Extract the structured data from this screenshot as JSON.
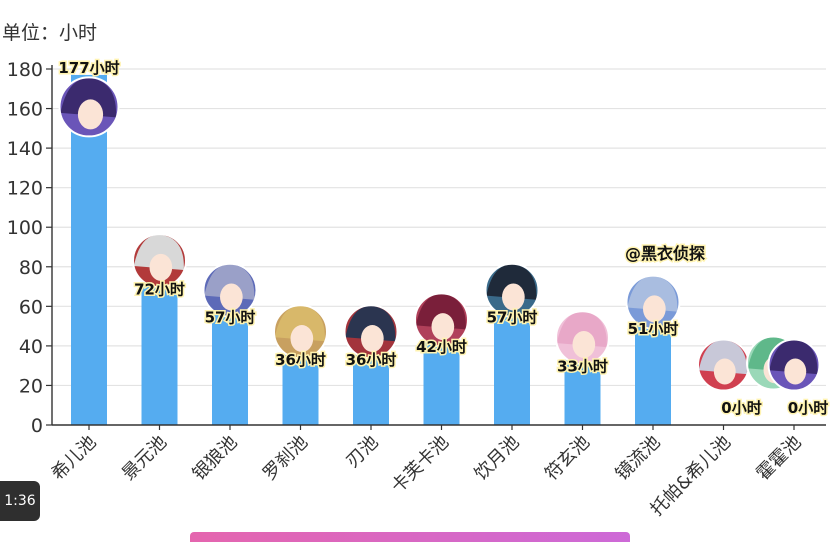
{
  "unit_label": "单位：小时",
  "player": {
    "timestamp": "1:36"
  },
  "chart_data": {
    "type": "bar",
    "categories": [
      "希儿池",
      "景元池",
      "银狼池",
      "罗刹池",
      "刃池",
      "卡芙卡池",
      "饮月池",
      "符玄池",
      "镜流池",
      "托帕&希儿池",
      "霍霍池"
    ],
    "values": [
      177,
      72,
      57,
      36,
      36,
      42,
      57,
      33,
      51,
      0,
      0
    ],
    "data_labels": [
      "177小时",
      "72小时",
      "57小时",
      "36小时",
      "36小时",
      "42小时",
      "57小时",
      "33小时",
      "51小时",
      "0小时",
      "0小时"
    ],
    "ylabel": "单位：小时",
    "ylim": [
      0,
      180
    ],
    "yticks": [
      0,
      20,
      40,
      60,
      80,
      100,
      120,
      140,
      160,
      180
    ],
    "grid": true,
    "annotation": "@黑衣侦探",
    "colors": {
      "bar": "#55acf0",
      "grid": "#e3e3e3",
      "axis": "#333333",
      "label": "#111111",
      "label_outline": "#fff3b0"
    }
  }
}
